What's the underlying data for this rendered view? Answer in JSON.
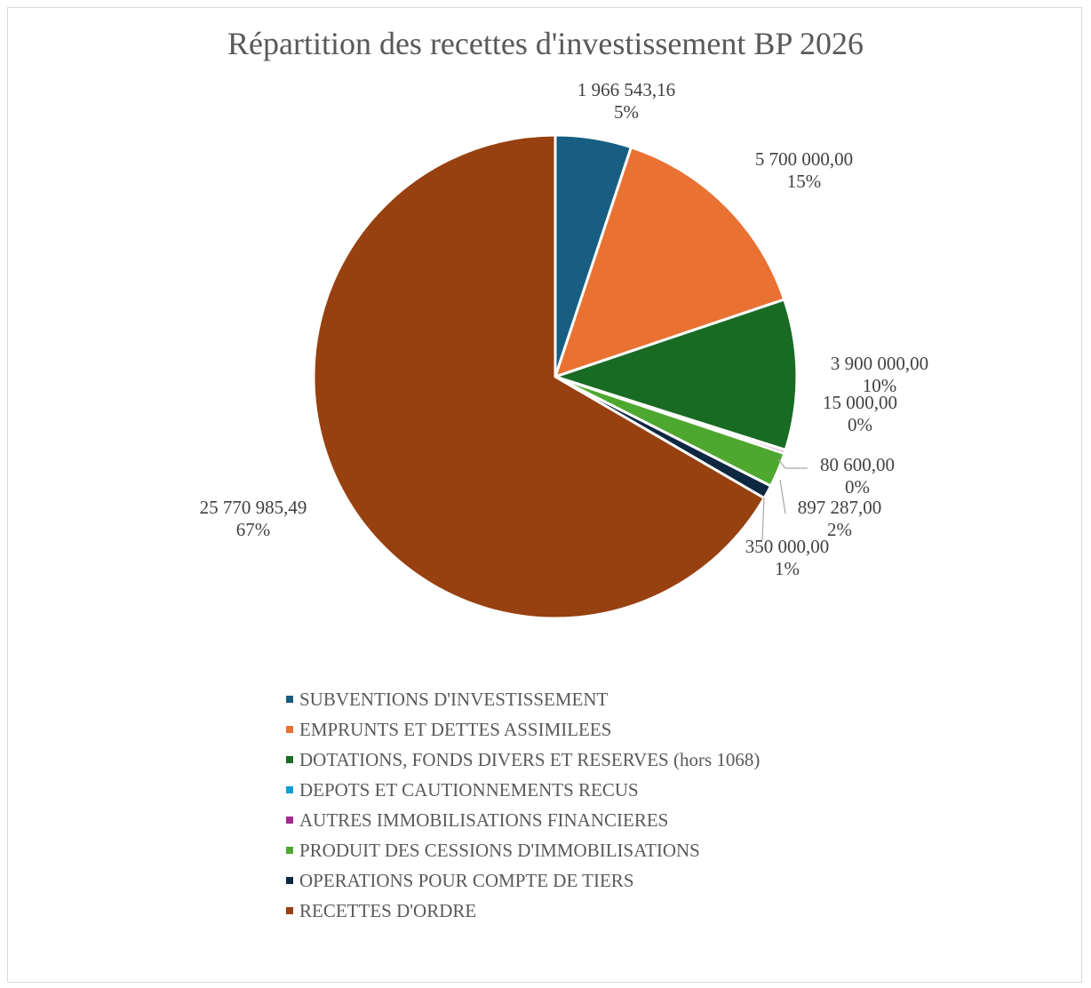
{
  "chart_data": {
    "type": "pie",
    "title": "Répartition des recettes d'investissement BP 2026",
    "legend_position": "bottom",
    "slices": [
      {
        "name": "SUBVENTIONS D'INVESTISSEMENT",
        "value": 1966543.16,
        "value_label": "1 966 543,16",
        "percent_label": "5%",
        "color": "#175e82"
      },
      {
        "name": "EMPRUNTS ET DETTES ASSIMILEES",
        "value": 5700000.0,
        "value_label": "5 700 000,00",
        "percent_label": "15%",
        "color": "#e97132"
      },
      {
        "name": "DOTATIONS, FONDS DIVERS ET RESERVES (hors 1068)",
        "value": 3900000.0,
        "value_label": "3 900 000,00",
        "percent_label": "10%",
        "color": "#196b24"
      },
      {
        "name": "DEPOTS ET CAUTIONNEMENTS RECUS",
        "value": 15000.0,
        "value_label": "15 000,00",
        "percent_label": "0%",
        "color": "#0f9ed5"
      },
      {
        "name": "AUTRES IMMOBILISATIONS FINANCIERES",
        "value": 80600.0,
        "value_label": "80 600,00",
        "percent_label": "0%",
        "color": "#a02b93"
      },
      {
        "name": "PRODUIT DES CESSIONS D'IMMOBILISATIONS",
        "value": 897287.0,
        "value_label": "897 287,00",
        "percent_label": "2%",
        "color": "#4ea72e"
      },
      {
        "name": "OPERATIONS POUR COMPTE DE TIERS",
        "value": 350000.0,
        "value_label": "350 000,00",
        "percent_label": "1%",
        "color": "#0e2841"
      },
      {
        "name": "RECETTES D'ORDRE",
        "value": 25770985.49,
        "value_label": "25 770 985,49",
        "percent_label": "67%",
        "color": "#974010"
      }
    ]
  }
}
